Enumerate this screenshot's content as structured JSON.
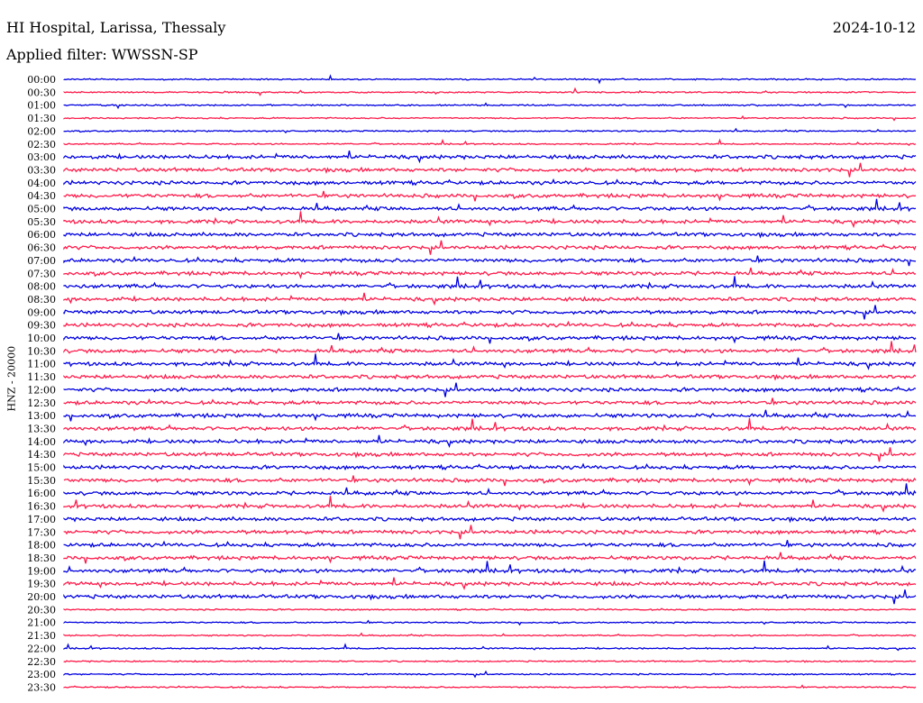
{
  "header": {
    "station": "HI Hospital, Larissa, Thessaly",
    "date": "2024-10-12",
    "filter": "Applied filter: WWSSN-SP"
  },
  "axis": {
    "channel_label": "HNZ - 20000"
  },
  "colors": {
    "even_trace": "#0000e0",
    "odd_trace": "#ff1a4a",
    "background": "#ffffff"
  },
  "rows": [
    "00:00",
    "00:30",
    "01:00",
    "01:30",
    "02:00",
    "02:30",
    "03:00",
    "03:30",
    "04:00",
    "04:30",
    "05:00",
    "05:30",
    "06:00",
    "06:30",
    "07:00",
    "07:30",
    "08:00",
    "08:30",
    "09:00",
    "09:30",
    "10:00",
    "10:30",
    "11:00",
    "11:30",
    "12:00",
    "12:30",
    "13:00",
    "13:30",
    "14:00",
    "14:30",
    "15:00",
    "15:30",
    "16:00",
    "16:30",
    "17:00",
    "17:30",
    "18:00",
    "18:30",
    "19:00",
    "19:30",
    "20:00",
    "20:30",
    "21:00",
    "21:30",
    "22:00",
    "22:30",
    "23:00",
    "23:30"
  ]
}
